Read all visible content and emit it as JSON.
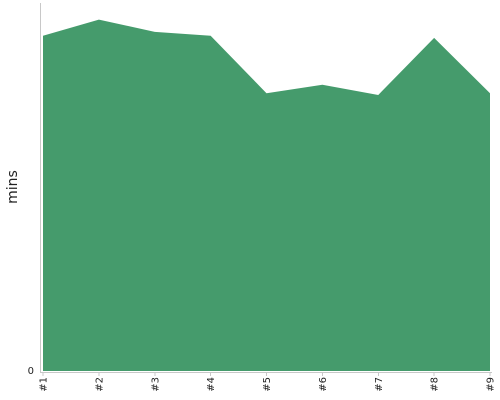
{
  "chart_data": {
    "type": "area",
    "categories": [
      "#1",
      "#2",
      "#3",
      "#4",
      "#5",
      "#6",
      "#7",
      "#8",
      "#9"
    ],
    "series": [
      {
        "values": [
          95.2,
          99.8,
          96.3,
          95.2,
          78.9,
          81.3,
          78.4,
          94.6,
          78.9
        ]
      }
    ],
    "ylabel": "mins",
    "xlabel": "",
    "title": "",
    "y_tick_labels": [
      "0"
    ],
    "ylim": [
      0,
      105
    ],
    "grid": false,
    "colors": {
      "fill": "#459b6c"
    }
  }
}
